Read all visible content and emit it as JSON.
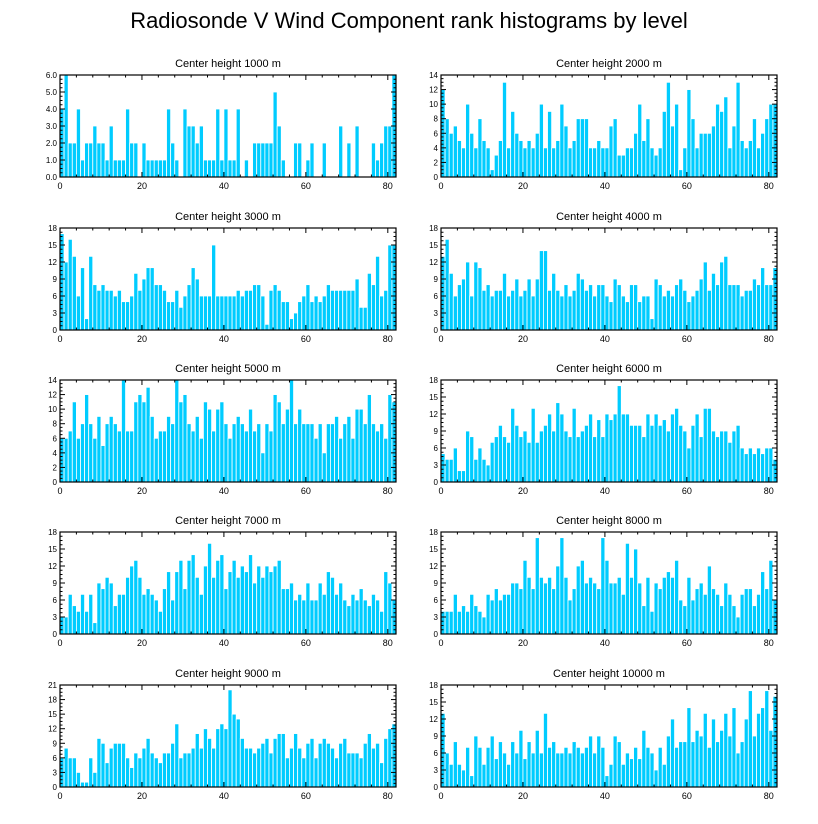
{
  "title": "Radiosonde V Wind Component rank histograms by level",
  "colors": {
    "bar": "#00ccff",
    "bar_edge": "#ffffff",
    "axis": "#000000"
  },
  "chart_data": [
    {
      "type": "bar",
      "title": "Center height 1000 m",
      "xlim": [
        0,
        82
      ],
      "ylim": [
        0,
        6
      ],
      "xticks": [
        0,
        20,
        40,
        60,
        80
      ],
      "xtick_labels": [
        "0",
        "20",
        "40",
        "60",
        "80"
      ],
      "yticks": [
        0,
        1,
        2,
        3,
        4,
        5,
        6
      ],
      "ytick_labels": [
        "0.0",
        "1.0",
        "2.0",
        "3.0",
        "4.0",
        "5.0",
        "6.0"
      ],
      "values": [
        4,
        6,
        2,
        2,
        4,
        1,
        2,
        2,
        3,
        2,
        2,
        1,
        3,
        1,
        1,
        1,
        4,
        2,
        2,
        0,
        2,
        1,
        1,
        1,
        1,
        1,
        4,
        2,
        1,
        0,
        4,
        3,
        3,
        2,
        3,
        1,
        1,
        1,
        4,
        1,
        4,
        1,
        1,
        4,
        0,
        1,
        0,
        2,
        2,
        2,
        2,
        2,
        5,
        3,
        1,
        0,
        0,
        2,
        2,
        0,
        1,
        2,
        0,
        0,
        2,
        0,
        0,
        0,
        3,
        0,
        2,
        0,
        3,
        0,
        0,
        0,
        2,
        1,
        2,
        3,
        3,
        6
      ]
    },
    {
      "type": "bar",
      "title": "Center height 2000 m",
      "xlim": [
        0,
        82
      ],
      "ylim": [
        0,
        14
      ],
      "xticks": [
        0,
        20,
        40,
        60,
        80
      ],
      "xtick_labels": [
        "0",
        "20",
        "40",
        "60",
        "80"
      ],
      "yticks": [
        0,
        2,
        4,
        6,
        8,
        10,
        12,
        14
      ],
      "ytick_labels": [
        "0",
        "2",
        "4",
        "6",
        "8",
        "10",
        "12",
        "14"
      ],
      "values": [
        12,
        8,
        6,
        7,
        5,
        4,
        10,
        6,
        4,
        8,
        5,
        4,
        1,
        3,
        5,
        13,
        4,
        9,
        6,
        5,
        4,
        5,
        4,
        6,
        10,
        4,
        9,
        4,
        5,
        10,
        7,
        4,
        5,
        8,
        8,
        8,
        4,
        4,
        5,
        4,
        4,
        7,
        8,
        3,
        3,
        4,
        4,
        6,
        10,
        5,
        8,
        4,
        3,
        4,
        9,
        13,
        7,
        10,
        1,
        4,
        12,
        8,
        4,
        6,
        6,
        6,
        7,
        10,
        9,
        11,
        4,
        7,
        13,
        5,
        4,
        5,
        8,
        4,
        6,
        8,
        10,
        10
      ]
    },
    {
      "type": "bar",
      "title": "Center height 3000 m",
      "xlim": [
        0,
        82
      ],
      "ylim": [
        0,
        18
      ],
      "xticks": [
        0,
        20,
        40,
        60,
        80
      ],
      "xtick_labels": [
        "0",
        "20",
        "40",
        "60",
        "80"
      ],
      "yticks": [
        0,
        3,
        6,
        9,
        12,
        15,
        18
      ],
      "ytick_labels": [
        "0",
        "3",
        "6",
        "9",
        "12",
        "15",
        "18"
      ],
      "values": [
        17,
        12,
        16,
        13,
        6,
        11,
        2,
        13,
        8,
        7,
        8,
        7,
        7,
        6,
        7,
        5,
        5,
        6,
        10,
        7,
        9,
        11,
        11,
        8,
        8,
        7,
        5,
        5,
        7,
        4,
        6,
        8,
        11,
        9,
        6,
        6,
        6,
        15,
        6,
        6,
        6,
        6,
        6,
        7,
        6,
        7,
        7,
        8,
        8,
        6,
        1,
        7,
        8,
        7,
        5,
        5,
        2,
        3,
        5,
        6,
        8,
        5,
        6,
        5,
        6,
        8,
        7,
        7,
        7,
        7,
        7,
        7,
        9,
        4,
        4,
        10,
        8,
        13,
        6,
        7,
        15,
        15
      ]
    },
    {
      "type": "bar",
      "title": "Center height 4000 m",
      "xlim": [
        0,
        82
      ],
      "ylim": [
        0,
        18
      ],
      "xticks": [
        0,
        20,
        40,
        60,
        80
      ],
      "xtick_labels": [
        "0",
        "20",
        "40",
        "60",
        "80"
      ],
      "yticks": [
        0,
        3,
        6,
        9,
        12,
        15,
        18
      ],
      "ytick_labels": [
        "0",
        "3",
        "6",
        "9",
        "12",
        "15",
        "18"
      ],
      "values": [
        13,
        16,
        10,
        6,
        8,
        9,
        12,
        6,
        12,
        11,
        7,
        8,
        6,
        7,
        7,
        10,
        6,
        7,
        9,
        6,
        7,
        9,
        6,
        9,
        14,
        14,
        7,
        10,
        7,
        6,
        8,
        6,
        7,
        10,
        9,
        7,
        8,
        6,
        8,
        8,
        6,
        5,
        9,
        8,
        6,
        5,
        8,
        8,
        5,
        6,
        6,
        2,
        9,
        8,
        6,
        7,
        6,
        8,
        9,
        7,
        5,
        6,
        7,
        9,
        12,
        7,
        10,
        8,
        12,
        13,
        8,
        8,
        8,
        6,
        7,
        7,
        9,
        8,
        11,
        8,
        8,
        11
      ]
    },
    {
      "type": "bar",
      "title": "Center height 5000 m",
      "xlim": [
        0,
        82
      ],
      "ylim": [
        0,
        14
      ],
      "xticks": [
        0,
        20,
        40,
        60,
        80
      ],
      "xtick_labels": [
        "0",
        "20",
        "40",
        "60",
        "80"
      ],
      "yticks": [
        0,
        2,
        4,
        6,
        8,
        10,
        12,
        14
      ],
      "ytick_labels": [
        "0",
        "2",
        "4",
        "6",
        "8",
        "10",
        "12",
        "14"
      ],
      "values": [
        6,
        6,
        7,
        11,
        6,
        8,
        12,
        8,
        6,
        9,
        5,
        8,
        9,
        8,
        7,
        14,
        7,
        7,
        11,
        12,
        11,
        13,
        9,
        6,
        7,
        7,
        9,
        8,
        14,
        11,
        12,
        8,
        7,
        9,
        6,
        11,
        10,
        7,
        10,
        11,
        8,
        6,
        8,
        9,
        8,
        7,
        10,
        7,
        8,
        4,
        8,
        7,
        12,
        11,
        8,
        10,
        14,
        8,
        10,
        8,
        8,
        8,
        6,
        8,
        4,
        8,
        8,
        9,
        6,
        8,
        9,
        6,
        10,
        10,
        8,
        12,
        8,
        7,
        8,
        6,
        12,
        11
      ]
    },
    {
      "type": "bar",
      "title": "Center height 6000 m",
      "xlim": [
        0,
        82
      ],
      "ylim": [
        0,
        18
      ],
      "xticks": [
        0,
        20,
        40,
        60,
        80
      ],
      "xtick_labels": [
        "0",
        "20",
        "40",
        "60",
        "80"
      ],
      "yticks": [
        0,
        3,
        6,
        9,
        12,
        15,
        18
      ],
      "ytick_labels": [
        "0",
        "3",
        "6",
        "9",
        "12",
        "15",
        "18"
      ],
      "values": [
        5,
        4,
        4,
        6,
        2,
        2,
        9,
        8,
        4,
        6,
        4,
        3,
        7,
        8,
        10,
        8,
        7,
        13,
        10,
        8,
        9,
        7,
        13,
        7,
        9,
        10,
        12,
        9,
        14,
        12,
        9,
        8,
        13,
        8,
        9,
        10,
        12,
        8,
        11,
        8,
        12,
        11,
        12,
        17,
        12,
        12,
        10,
        10,
        10,
        8,
        12,
        10,
        12,
        10,
        11,
        9,
        12,
        13,
        10,
        9,
        6,
        10,
        12,
        8,
        13,
        13,
        9,
        8,
        9,
        9,
        7,
        9,
        10,
        6,
        5,
        6,
        5,
        6,
        5,
        6,
        6,
        4
      ]
    },
    {
      "type": "bar",
      "title": "Center height 7000 m",
      "xlim": [
        0,
        82
      ],
      "ylim": [
        0,
        18
      ],
      "xticks": [
        0,
        20,
        40,
        60,
        80
      ],
      "xtick_labels": [
        "0",
        "20",
        "40",
        "60",
        "80"
      ],
      "yticks": [
        0,
        3,
        6,
        9,
        12,
        15,
        18
      ],
      "ytick_labels": [
        "0",
        "3",
        "6",
        "9",
        "12",
        "15",
        "18"
      ],
      "values": [
        3,
        3,
        7,
        5,
        4,
        7,
        4,
        7,
        2,
        9,
        8,
        10,
        9,
        5,
        7,
        7,
        10,
        12,
        13,
        10,
        7,
        8,
        7,
        6,
        4,
        8,
        11,
        6,
        11,
        13,
        8,
        13,
        14,
        10,
        7,
        12,
        16,
        10,
        13,
        14,
        8,
        11,
        13,
        10,
        12,
        11,
        14,
        9,
        12,
        10,
        12,
        11,
        12,
        13,
        8,
        8,
        9,
        6,
        7,
        6,
        9,
        6,
        6,
        9,
        7,
        11,
        10,
        7,
        9,
        6,
        5,
        7,
        6,
        8,
        6,
        5,
        7,
        6,
        4,
        11,
        9,
        6
      ]
    },
    {
      "type": "bar",
      "title": "Center height 8000 m",
      "xlim": [
        0,
        82
      ],
      "ylim": [
        0,
        18
      ],
      "xticks": [
        0,
        20,
        40,
        60,
        80
      ],
      "xtick_labels": [
        "0",
        "20",
        "40",
        "60",
        "80"
      ],
      "yticks": [
        0,
        3,
        6,
        9,
        12,
        15,
        18
      ],
      "ytick_labels": [
        "0",
        "3",
        "6",
        "9",
        "12",
        "15",
        "18"
      ],
      "values": [
        4,
        4,
        4,
        7,
        4,
        5,
        4,
        7,
        5,
        4,
        3,
        7,
        6,
        8,
        6,
        7,
        7,
        9,
        9,
        8,
        13,
        10,
        8,
        17,
        10,
        9,
        10,
        8,
        12,
        17,
        10,
        6,
        8,
        12,
        13,
        9,
        10,
        9,
        8,
        17,
        13,
        9,
        9,
        10,
        7,
        16,
        10,
        15,
        9,
        5,
        10,
        4,
        9,
        8,
        10,
        11,
        10,
        13,
        6,
        5,
        10,
        6,
        8,
        9,
        7,
        12,
        8,
        7,
        5,
        9,
        7,
        5,
        3,
        7,
        8,
        8,
        5,
        7,
        11,
        8,
        13,
        6
      ]
    },
    {
      "type": "bar",
      "title": "Center height 9000 m",
      "xlim": [
        0,
        82
      ],
      "ylim": [
        0,
        21
      ],
      "xticks": [
        0,
        20,
        40,
        60,
        80
      ],
      "xtick_labels": [
        "0",
        "20",
        "40",
        "60",
        "80"
      ],
      "yticks": [
        0,
        3,
        6,
        9,
        12,
        15,
        18,
        21
      ],
      "ytick_labels": [
        "0",
        "3",
        "6",
        "9",
        "12",
        "15",
        "18",
        "21"
      ],
      "values": [
        6,
        8,
        6,
        6,
        3,
        1,
        1,
        6,
        3,
        10,
        9,
        5,
        8,
        9,
        9,
        9,
        6,
        4,
        7,
        6,
        8,
        10,
        7,
        6,
        5,
        7,
        7,
        9,
        13,
        6,
        7,
        7,
        8,
        11,
        8,
        12,
        10,
        8,
        12,
        13,
        12,
        20,
        15,
        14,
        10,
        8,
        8,
        7,
        8,
        9,
        10,
        7,
        10,
        11,
        11,
        6,
        8,
        11,
        8,
        6,
        9,
        10,
        6,
        9,
        10,
        9,
        8,
        6,
        9,
        10,
        7,
        7,
        7,
        6,
        9,
        11,
        8,
        9,
        5,
        10,
        12,
        13
      ]
    },
    {
      "type": "bar",
      "title": "Center height 10000 m",
      "xlim": [
        0,
        82
      ],
      "ylim": [
        0,
        18
      ],
      "xticks": [
        0,
        20,
        40,
        60,
        80
      ],
      "xtick_labels": [
        "0",
        "20",
        "40",
        "60",
        "80"
      ],
      "yticks": [
        0,
        3,
        6,
        9,
        12,
        15,
        18
      ],
      "ytick_labels": [
        "0",
        "3",
        "6",
        "9",
        "12",
        "15",
        "18"
      ],
      "values": [
        13,
        6,
        4,
        8,
        4,
        3,
        7,
        2,
        9,
        7,
        4,
        7,
        9,
        5,
        8,
        6,
        4,
        8,
        6,
        10,
        5,
        8,
        6,
        10,
        6,
        13,
        7,
        8,
        6,
        6,
        7,
        6,
        8,
        7,
        6,
        7,
        9,
        6,
        9,
        7,
        2,
        4,
        9,
        8,
        4,
        6,
        5,
        7,
        5,
        10,
        7,
        6,
        3,
        7,
        4,
        9,
        12,
        7,
        8,
        8,
        14,
        8,
        10,
        9,
        13,
        7,
        12,
        8,
        10,
        13,
        9,
        14,
        6,
        8,
        12,
        17,
        9,
        13,
        14,
        17,
        10,
        16
      ]
    }
  ]
}
